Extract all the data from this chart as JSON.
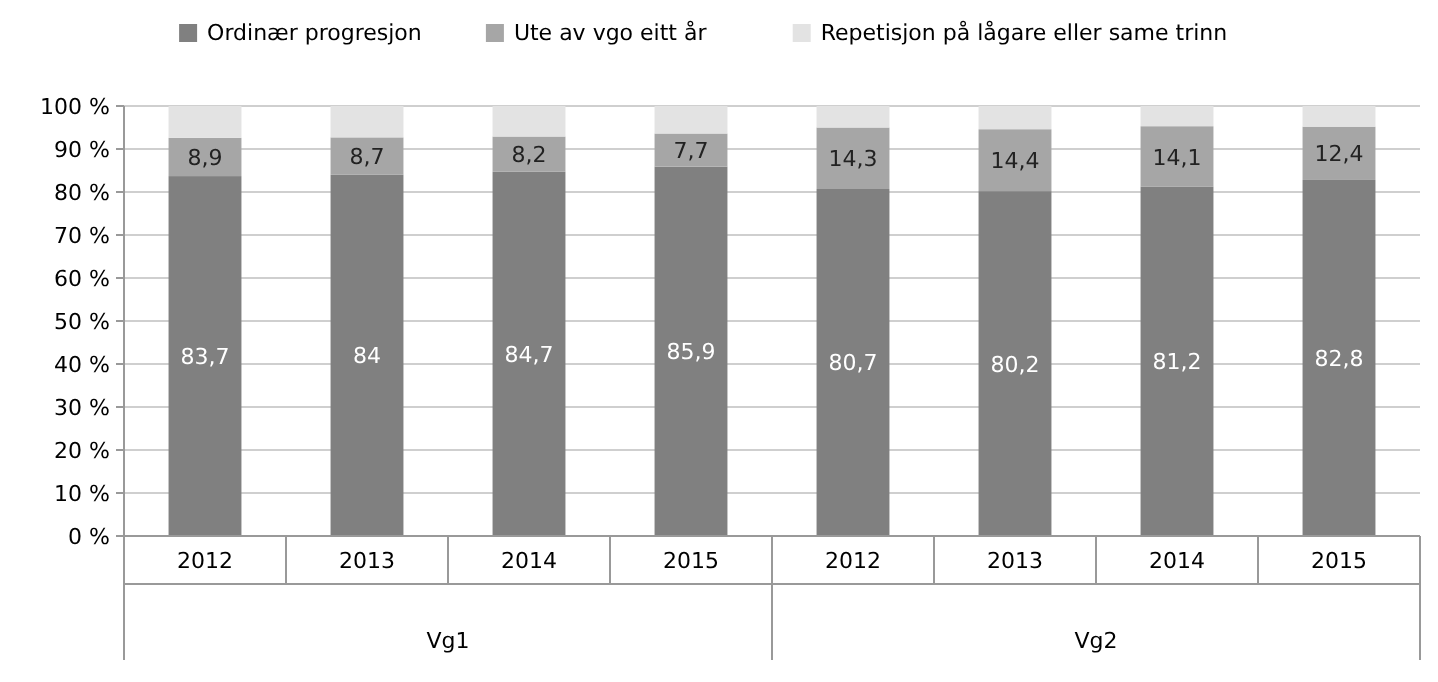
{
  "chart_data": {
    "type": "bar",
    "stacked": true,
    "categories": [
      "2012",
      "2013",
      "2014",
      "2015",
      "2012",
      "2013",
      "2014",
      "2015"
    ],
    "series": [
      {
        "name": "Ordinær progresjon",
        "color": "#808080",
        "values": [
          83.7,
          84,
          84.7,
          85.9,
          80.7,
          80.2,
          81.2,
          82.8
        ],
        "value_labels": [
          "83,7",
          "84",
          "84,7",
          "85,9",
          "80,7",
          "80,2",
          "81,2",
          "82,8"
        ]
      },
      {
        "name": "Ute av vgo eitt år",
        "color": "#a6a6a6",
        "values": [
          8.9,
          8.7,
          8.2,
          7.7,
          14.3,
          14.4,
          14.1,
          12.4
        ],
        "value_labels": [
          "8,9",
          "8,7",
          "8,2",
          "7,7",
          "14,3",
          "14,4",
          "14,1",
          "12,4"
        ]
      },
      {
        "name": "Repetisjon på lågare eller same trinn",
        "color": "#e3e3e3",
        "values": [
          7.4,
          7.3,
          7.1,
          6.4,
          5.0,
          5.4,
          4.7,
          4.8
        ]
      }
    ],
    "annotations": [
      "Vg1",
      "Vg2"
    ],
    "ylim": [
      0,
      100
    ],
    "yticks": [
      {
        "value": 0,
        "label": "0 %"
      },
      {
        "value": 10,
        "label": "10 %"
      },
      {
        "value": 20,
        "label": "20 %"
      },
      {
        "value": 30,
        "label": "30 %"
      },
      {
        "value": 40,
        "label": "40 %"
      },
      {
        "value": 50,
        "label": "50 %"
      },
      {
        "value": 60,
        "label": "60 %"
      },
      {
        "value": 70,
        "label": "70 %"
      },
      {
        "value": 80,
        "label": "80 %"
      },
      {
        "value": 90,
        "label": "90 %"
      },
      {
        "value": 100,
        "label": "100 %"
      }
    ],
    "grid": "y",
    "legend": "top"
  }
}
